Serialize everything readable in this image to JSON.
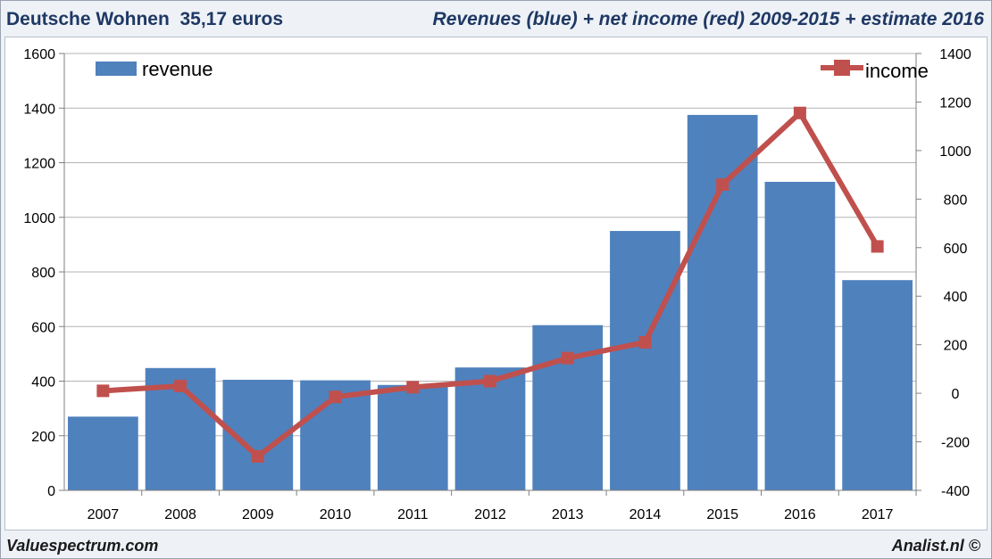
{
  "header": {
    "left_title": "Deutsche Wohnen  35,17 euros",
    "right_title": "Revenues (blue) + net income (red) 2009-2015 + estimate 2016"
  },
  "footer": {
    "left": "Valuespectrum.com",
    "right": "Analist.nl ©"
  },
  "colors": {
    "bar": "#4f81bd",
    "line": "#c0504d",
    "grid": "#b3b3b3",
    "axis": "#7f7f7f",
    "text": "#000000"
  },
  "chart_data": {
    "type": "bar",
    "categories": [
      "2007",
      "2008",
      "2009",
      "2010",
      "2011",
      "2012",
      "2013",
      "2014",
      "2015",
      "2016",
      "2017"
    ],
    "series": [
      {
        "name": "revenue",
        "type": "bar",
        "axis": "left",
        "values": [
          270,
          448,
          405,
          403,
          386,
          450,
          605,
          950,
          1375,
          1130,
          770
        ]
      },
      {
        "name": "income",
        "type": "line",
        "axis": "right",
        "values": [
          10,
          30,
          -260,
          -15,
          25,
          50,
          145,
          210,
          860,
          1155,
          605
        ]
      }
    ],
    "y_left": {
      "min": 0,
      "max": 1600,
      "ticks": [
        "0",
        "200",
        "400",
        "600",
        "800",
        "1000",
        "1200",
        "1400",
        "1600"
      ]
    },
    "y_right": {
      "min": -400,
      "max": 1400,
      "ticks": [
        "-400",
        "-200",
        "0",
        "200",
        "400",
        "600",
        "800",
        "1000",
        "1200",
        "1400"
      ]
    },
    "legend": {
      "revenue_label": "revenue",
      "revenue_position": "top-left",
      "income_label": "income",
      "income_position": "top-right"
    },
    "grid": true
  }
}
